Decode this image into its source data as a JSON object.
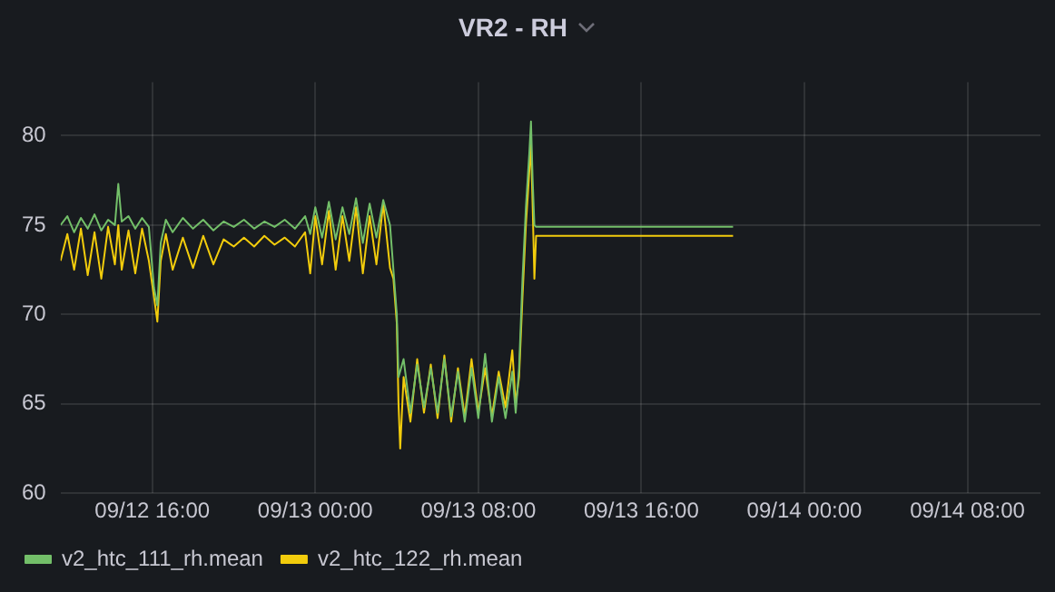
{
  "chart_data": {
    "type": "line",
    "title": "VR2 - RH",
    "xlim": [
      "--09-12T11:30",
      "--09-14T11:35"
    ],
    "xticks": [
      {
        "value": "--09-12T16:00",
        "label": "09/12 16:00"
      },
      {
        "value": "--09-13T00:00",
        "label": "09/13 00:00"
      },
      {
        "value": "--09-13T08:00",
        "label": "09/13 08:00"
      },
      {
        "value": "--09-13T16:00",
        "label": "09/13 16:00"
      },
      {
        "value": "--09-14T00:00",
        "label": "09/14 00:00"
      },
      {
        "value": "--09-14T08:00",
        "label": "09/14 08:00"
      }
    ],
    "ylim": [
      60,
      83
    ],
    "yticks": [
      60,
      65,
      70,
      75,
      80
    ],
    "grid": true,
    "legend": "bottom left",
    "marker": "none",
    "line_style": "solid",
    "series": [
      {
        "name": "v2_htc_111_rh.mean",
        "color": "#73bf69",
        "x": [
          "--09-12T11:30",
          "--09-12T11:50",
          "--09-12T12:10",
          "--09-12T12:30",
          "--09-12T12:50",
          "--09-12T13:10",
          "--09-12T13:30",
          "--09-12T13:50",
          "--09-12T14:10",
          "--09-12T14:20",
          "--09-12T14:30",
          "--09-12T14:50",
          "--09-12T15:10",
          "--09-12T15:30",
          "--09-12T15:50",
          "--09-12T16:05",
          "--09-12T16:15",
          "--09-12T16:25",
          "--09-12T16:40",
          "--09-12T17:00",
          "--09-12T17:30",
          "--09-12T18:00",
          "--09-12T18:30",
          "--09-12T19:00",
          "--09-12T19:30",
          "--09-12T20:00",
          "--09-12T20:30",
          "--09-12T21:00",
          "--09-12T21:30",
          "--09-12T22:00",
          "--09-12T22:30",
          "--09-12T23:00",
          "--09-12T23:30",
          "--09-12T23:45",
          "--09-13T00:00",
          "--09-13T00:20",
          "--09-13T00:40",
          "--09-13T01:00",
          "--09-13T01:20",
          "--09-13T01:40",
          "--09-13T02:00",
          "--09-13T02:20",
          "--09-13T02:40",
          "--09-13T03:00",
          "--09-13T03:20",
          "--09-13T03:40",
          "--09-13T03:50",
          "--09-13T04:00",
          "--09-13T04:05",
          "--09-13T04:20",
          "--09-13T04:40",
          "--09-13T05:00",
          "--09-13T05:20",
          "--09-13T05:40",
          "--09-13T06:00",
          "--09-13T06:20",
          "--09-13T06:40",
          "--09-13T07:00",
          "--09-13T07:20",
          "--09-13T07:40",
          "--09-13T08:00",
          "--09-13T08:20",
          "--09-13T08:40",
          "--09-13T09:00",
          "--09-13T09:20",
          "--09-13T09:40",
          "--09-13T09:50",
          "--09-13T10:00",
          "--09-13T10:10",
          "--09-13T10:20",
          "--09-13T10:30",
          "--09-13T10:35",
          "--09-13T10:40",
          "--09-13T10:45",
          "--09-13T10:50",
          "--09-13T20:30"
        ],
        "values": [
          75.0,
          75.5,
          74.6,
          75.4,
          74.8,
          75.6,
          74.7,
          75.3,
          75.0,
          77.3,
          75.2,
          75.5,
          74.8,
          75.4,
          74.9,
          71.5,
          70.5,
          74.0,
          75.3,
          74.6,
          75.4,
          74.8,
          75.3,
          74.7,
          75.2,
          74.9,
          75.3,
          74.8,
          75.2,
          74.9,
          75.3,
          74.8,
          75.5,
          74.5,
          76.0,
          74.3,
          76.3,
          74.2,
          76.0,
          74.5,
          76.5,
          74.0,
          76.2,
          74.3,
          76.4,
          75.0,
          72.5,
          70.0,
          66.5,
          67.5,
          64.5,
          67.2,
          64.8,
          67.0,
          64.5,
          67.5,
          64.3,
          66.8,
          64.0,
          67.0,
          64.2,
          67.8,
          64.0,
          66.5,
          64.2,
          66.8,
          64.5,
          67.0,
          72.0,
          76.0,
          79.0,
          80.8,
          77.5,
          75.0,
          74.9,
          74.9
        ]
      },
      {
        "name": "v2_htc_122_rh.mean",
        "color": "#f2cc0c",
        "x": [
          "--09-12T11:30",
          "--09-12T11:50",
          "--09-12T12:10",
          "--09-12T12:30",
          "--09-12T12:50",
          "--09-12T13:10",
          "--09-12T13:30",
          "--09-12T13:50",
          "--09-12T14:10",
          "--09-12T14:20",
          "--09-12T14:30",
          "--09-12T14:50",
          "--09-12T15:10",
          "--09-12T15:30",
          "--09-12T15:50",
          "--09-12T16:05",
          "--09-12T16:15",
          "--09-12T16:25",
          "--09-12T16:40",
          "--09-12T17:00",
          "--09-12T17:30",
          "--09-12T18:00",
          "--09-12T18:30",
          "--09-12T19:00",
          "--09-12T19:30",
          "--09-12T20:00",
          "--09-12T20:30",
          "--09-12T21:00",
          "--09-12T21:30",
          "--09-12T22:00",
          "--09-12T22:30",
          "--09-12T23:00",
          "--09-12T23:30",
          "--09-12T23:45",
          "--09-13T00:00",
          "--09-13T00:20",
          "--09-13T00:40",
          "--09-13T01:00",
          "--09-13T01:20",
          "--09-13T01:40",
          "--09-13T02:00",
          "--09-13T02:20",
          "--09-13T02:40",
          "--09-13T03:00",
          "--09-13T03:20",
          "--09-13T03:40",
          "--09-13T03:50",
          "--09-13T04:00",
          "--09-13T04:05",
          "--09-13T04:10",
          "--09-13T04:20",
          "--09-13T04:40",
          "--09-13T05:00",
          "--09-13T05:20",
          "--09-13T05:40",
          "--09-13T06:00",
          "--09-13T06:20",
          "--09-13T06:40",
          "--09-13T07:00",
          "--09-13T07:20",
          "--09-13T07:40",
          "--09-13T08:00",
          "--09-13T08:20",
          "--09-13T08:40",
          "--09-13T09:00",
          "--09-13T09:20",
          "--09-13T09:40",
          "--09-13T09:50",
          "--09-13T10:00",
          "--09-13T10:10",
          "--09-13T10:20",
          "--09-13T10:30",
          "--09-13T10:35",
          "--09-13T10:40",
          "--09-13T10:45",
          "--09-13T10:50",
          "--09-13T20:30"
        ],
        "values": [
          73.0,
          74.5,
          72.5,
          74.8,
          72.2,
          74.6,
          72.0,
          74.9,
          72.8,
          75.0,
          72.5,
          74.7,
          72.3,
          74.8,
          73.0,
          71.0,
          69.6,
          73.0,
          74.5,
          72.5,
          74.3,
          72.6,
          74.4,
          72.8,
          74.2,
          73.8,
          74.3,
          73.8,
          74.4,
          73.9,
          74.3,
          73.8,
          74.6,
          72.3,
          75.5,
          72.8,
          75.8,
          72.5,
          75.5,
          73.0,
          76.0,
          72.3,
          75.5,
          72.8,
          76.2,
          72.6,
          72.0,
          69.5,
          65.0,
          62.5,
          66.5,
          64.0,
          67.5,
          64.5,
          67.2,
          64.2,
          67.7,
          64.0,
          67.0,
          64.3,
          67.5,
          64.5,
          67.0,
          64.3,
          66.8,
          64.8,
          68.0,
          65.0,
          66.5,
          71.0,
          75.0,
          78.0,
          79.5,
          76.0,
          72.0,
          74.4,
          74.4
        ]
      }
    ]
  }
}
